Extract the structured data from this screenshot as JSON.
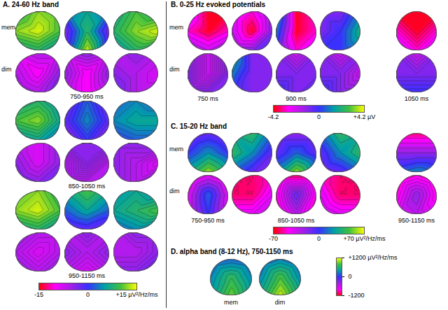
{
  "chart_data": [
    {
      "type": "topomap",
      "title": "A. 24-60 Hz band",
      "conditions": [
        "mem",
        "dim"
      ],
      "groups": [
        {
          "label": "750-950 ms",
          "maps": {
            "mem": [
              [
                [
                  8,
                  12,
                  10
                ],
                [
                  12,
                  14,
                  10
                ],
                [
                  6,
                  8,
                  4
                ]
              ],
              [
                [
                  2,
                  6,
                  2
                ],
                [
                  -4,
                  8,
                  -4
                ],
                [
                  -2,
                  14,
                  -2
                ]
              ],
              [
                [
                  6,
                  10,
                  8
                ],
                [
                  8,
                  12,
                  14
                ],
                [
                  4,
                  8,
                  6
                ]
              ]
            ],
            "dim": [
              [
                [
                  -8,
                  -6,
                  -6
                ],
                [
                  -6,
                  -10,
                  -4
                ],
                [
                  -4,
                  -6,
                  -2
                ]
              ],
              [
                [
                  -6,
                  -4,
                  -6
                ],
                [
                  -4,
                  -10,
                  -4
                ],
                [
                  -6,
                  -10,
                  -6
                ]
              ],
              [
                [
                  -6,
                  -4,
                  -6
                ],
                [
                  -4,
                  -6,
                  -8
                ],
                [
                  -2,
                  -6,
                  -6
                ]
              ]
            ]
          }
        },
        {
          "label": "850-1050 ms",
          "maps": {
            "mem": [
              [
                [
                  6,
                  8,
                  4
                ],
                [
                  10,
                  12,
                  6
                ],
                [
                  4,
                  6,
                  2
                ]
              ],
              [
                [
                  -4,
                  2,
                  -4
                ],
                [
                  -2,
                  4,
                  -2
                ],
                [
                  -6,
                  0,
                  -6
                ]
              ],
              [
                [
                  2,
                  4,
                  2
                ],
                [
                  4,
                  6,
                  6
                ],
                [
                  0,
                  2,
                  2
                ]
              ]
            ],
            "dim": [
              [
                [
                  -6,
                  -8,
                  -4
                ],
                [
                  -4,
                  -8,
                  -4
                ],
                [
                  -2,
                  -4,
                  -2
                ]
              ],
              [
                [
                  -4,
                  -4,
                  -4
                ],
                [
                  -6,
                  -4,
                  -6
                ],
                [
                  -6,
                  -6,
                  -6
                ]
              ],
              [
                [
                  -4,
                  -4,
                  -4
                ],
                [
                  -4,
                  -6,
                  -8
                ],
                [
                  -4,
                  -6,
                  -4
                ]
              ]
            ]
          }
        },
        {
          "label": "950-1150 ms",
          "maps": {
            "mem": [
              [
                [
                  10,
                  12,
                  8
                ],
                [
                  12,
                  14,
                  10
                ],
                [
                  6,
                  8,
                  4
                ]
              ],
              [
                [
                  6,
                  10,
                  6
                ],
                [
                  2,
                  6,
                  2
                ],
                [
                  -4,
                  -2,
                  -4
                ]
              ],
              [
                [
                  4,
                  6,
                  4
                ],
                [
                  6,
                  8,
                  10
                ],
                [
                  2,
                  4,
                  2
                ]
              ]
            ],
            "dim": [
              [
                [
                  -4,
                  -6,
                  -6
                ],
                [
                  -6,
                  -8,
                  -6
                ],
                [
                  -4,
                  -6,
                  -4
                ]
              ],
              [
                [
                  -6,
                  -4,
                  -6
                ],
                [
                  -4,
                  -6,
                  -4
                ],
                [
                  -6,
                  -8,
                  -6
                ]
              ],
              [
                [
                  -6,
                  -4,
                  -4
                ],
                [
                  -6,
                  -6,
                  -4
                ],
                [
                  -4,
                  -4,
                  -2
                ]
              ]
            ]
          }
        }
      ],
      "colorbar": {
        "range": [
          -15,
          15
        ],
        "ticks": [
          -15,
          0,
          {
            "value": 15,
            "label": "+15 µV²/Hz/ms"
          }
        ]
      }
    },
    {
      "type": "topomap",
      "title": "B. 0-25 Hz evoked potentials",
      "conditions": [
        "mem",
        "dim"
      ],
      "groups": [
        {
          "label": "750 ms",
          "maps": {
            "mem": [
              [
                [
                  -2,
                  -4,
                  -4
                ],
                [
                  -3,
                  -4,
                  -3
                ],
                [
                  -1,
                  -2,
                  -1
                ]
              ]
            ],
            "dim": [
              [
                [
                  -1,
                  -2,
                  -1
                ],
                [
                  -1,
                  -2,
                  -1
                ],
                [
                  -1,
                  -1,
                  -1
                ]
              ]
            ]
          }
        },
        {
          "label": "900 ms",
          "maps": {
            "mem": [
              [
                [
                  -2,
                  -3,
                  -1
                ],
                [
                  -2,
                  -4,
                  -1
                ],
                [
                  -1,
                  -1,
                  0
                ]
              ],
              [
                [
                  2,
                  -4,
                  -3
                ],
                [
                  1,
                  -4,
                  -3
                ],
                [
                  0,
                  -3,
                  -2
                ]
              ],
              [
                [
                  -1,
                  -1,
                  1
                ],
                [
                  -1,
                  0,
                  2
                ],
                [
                  0,
                  0,
                  1
                ]
              ]
            ],
            "dim": [
              [
                [
                  2,
                  -1,
                  -1
                ],
                [
                  1,
                  -1,
                  -1
                ],
                [
                  0,
                  -1,
                  -1
                ]
              ],
              [
                [
                  -1,
                  -2,
                  -1
                ],
                [
                  -1,
                  -1,
                  -1
                ],
                [
                  0,
                  -1,
                  0
                ]
              ],
              [
                [
                  -1,
                  -2,
                  -1
                ],
                [
                  -1,
                  -1,
                  -2
                ],
                [
                  0,
                  -1,
                  -1
                ]
              ]
            ]
          }
        },
        {
          "label": "1050 ms",
          "maps": {
            "mem": [
              [
                [
                  -4,
                  -4,
                  -4
                ],
                [
                  -3,
                  -4,
                  -3
                ],
                [
                  -2,
                  -3,
                  -2
                ]
              ]
            ],
            "dim": [
              [
                [
                  -1,
                  -2,
                  -1
                ],
                [
                  -1,
                  -1,
                  -1
                ],
                [
                  0,
                  0,
                  0
                ]
              ]
            ]
          }
        }
      ],
      "colorbar": {
        "range": [
          -4.2,
          4.2
        ],
        "ticks": [
          -4.2,
          0,
          {
            "value": 4.2,
            "label": "+4.2 µV"
          }
        ]
      }
    },
    {
      "type": "topomap",
      "title": "C. 15-20 Hz band",
      "conditions": [
        "mem",
        "dim"
      ],
      "groups": [
        {
          "label": "750-950 ms",
          "maps": {
            "mem": [
              [
                [
                  -20,
                  -10,
                  -20
                ],
                [
                  0,
                  20,
                  0
                ],
                [
                  30,
                  60,
                  30
                ]
              ]
            ],
            "dim": [
              [
                [
                  -60,
                  -40,
                  -60
                ],
                [
                  -40,
                  10,
                  -40
                ],
                [
                  -40,
                  0,
                  -40
                ]
              ]
            ]
          }
        },
        {
          "label": "850-1050 ms",
          "maps": {
            "mem": [
              [
                [
                  30,
                  40,
                  10
                ],
                [
                  40,
                  20,
                  -10
                ],
                [
                  10,
                  -10,
                  -20
                ]
              ],
              [
                [
                  -20,
                  -20,
                  -20
                ],
                [
                  -10,
                  10,
                  -10
                ],
                [
                  20,
                  60,
                  20
                ]
              ],
              [
                [
                  10,
                  40,
                  30
                ],
                [
                  -10,
                  20,
                  40
                ],
                [
                  -20,
                  -10,
                  10
                ]
              ]
            ],
            "dim": [
              [
                [
                  -60,
                  -60,
                  -50
                ],
                [
                  -60,
                  -60,
                  -40
                ],
                [
                  -40,
                  -40,
                  -30
                ]
              ],
              [
                [
                  -60,
                  -60,
                  -60
                ],
                [
                  -50,
                  -10,
                  -50
                ],
                [
                  -60,
                  -30,
                  -60
                ]
              ],
              [
                [
                  -50,
                  -60,
                  -60
                ],
                [
                  -40,
                  -60,
                  -60
                ],
                [
                  -30,
                  -40,
                  -40
                ]
              ]
            ]
          }
        },
        {
          "label": "950-1150 ms",
          "maps": {
            "mem": [
              [
                [
                  -60,
                  -60,
                  -60
                ],
                [
                  -20,
                  -20,
                  -20
                ],
                [
                  10,
                  20,
                  10
                ]
              ]
            ],
            "dim": [
              [
                [
                  -60,
                  -50,
                  -60
                ],
                [
                  -50,
                  -20,
                  -50
                ],
                [
                  -40,
                  -30,
                  -40
                ]
              ]
            ]
          }
        }
      ],
      "colorbar": {
        "range": [
          -70,
          70
        ],
        "ticks": [
          -70,
          0,
          {
            "value": 70,
            "label": "+70 µV²/Hz/ms"
          }
        ]
      }
    },
    {
      "type": "topomap",
      "title": "D. alpha band (8-12 Hz), 750-1150 ms",
      "conditions": [
        "mem",
        "dim"
      ],
      "groups": [
        {
          "maps": {
            "mem": [
              [
                [
                  100,
                  200,
                  100
                ],
                [
                  300,
                  700,
                  300
                ],
                [
                  400,
                  900,
                  400
                ]
              ]
            ],
            "dim": [
              [
                [
                  100,
                  300,
                  100
                ],
                [
                  300,
                  800,
                  300
                ],
                [
                  500,
                  1100,
                  500
                ]
              ]
            ]
          }
        }
      ],
      "colorbar": {
        "range": [
          -1200,
          1200
        ],
        "ticks": [
          -1200,
          0,
          {
            "value": 1200,
            "label": "+1200 µV²/Hz/ms"
          }
        ]
      }
    }
  ]
}
